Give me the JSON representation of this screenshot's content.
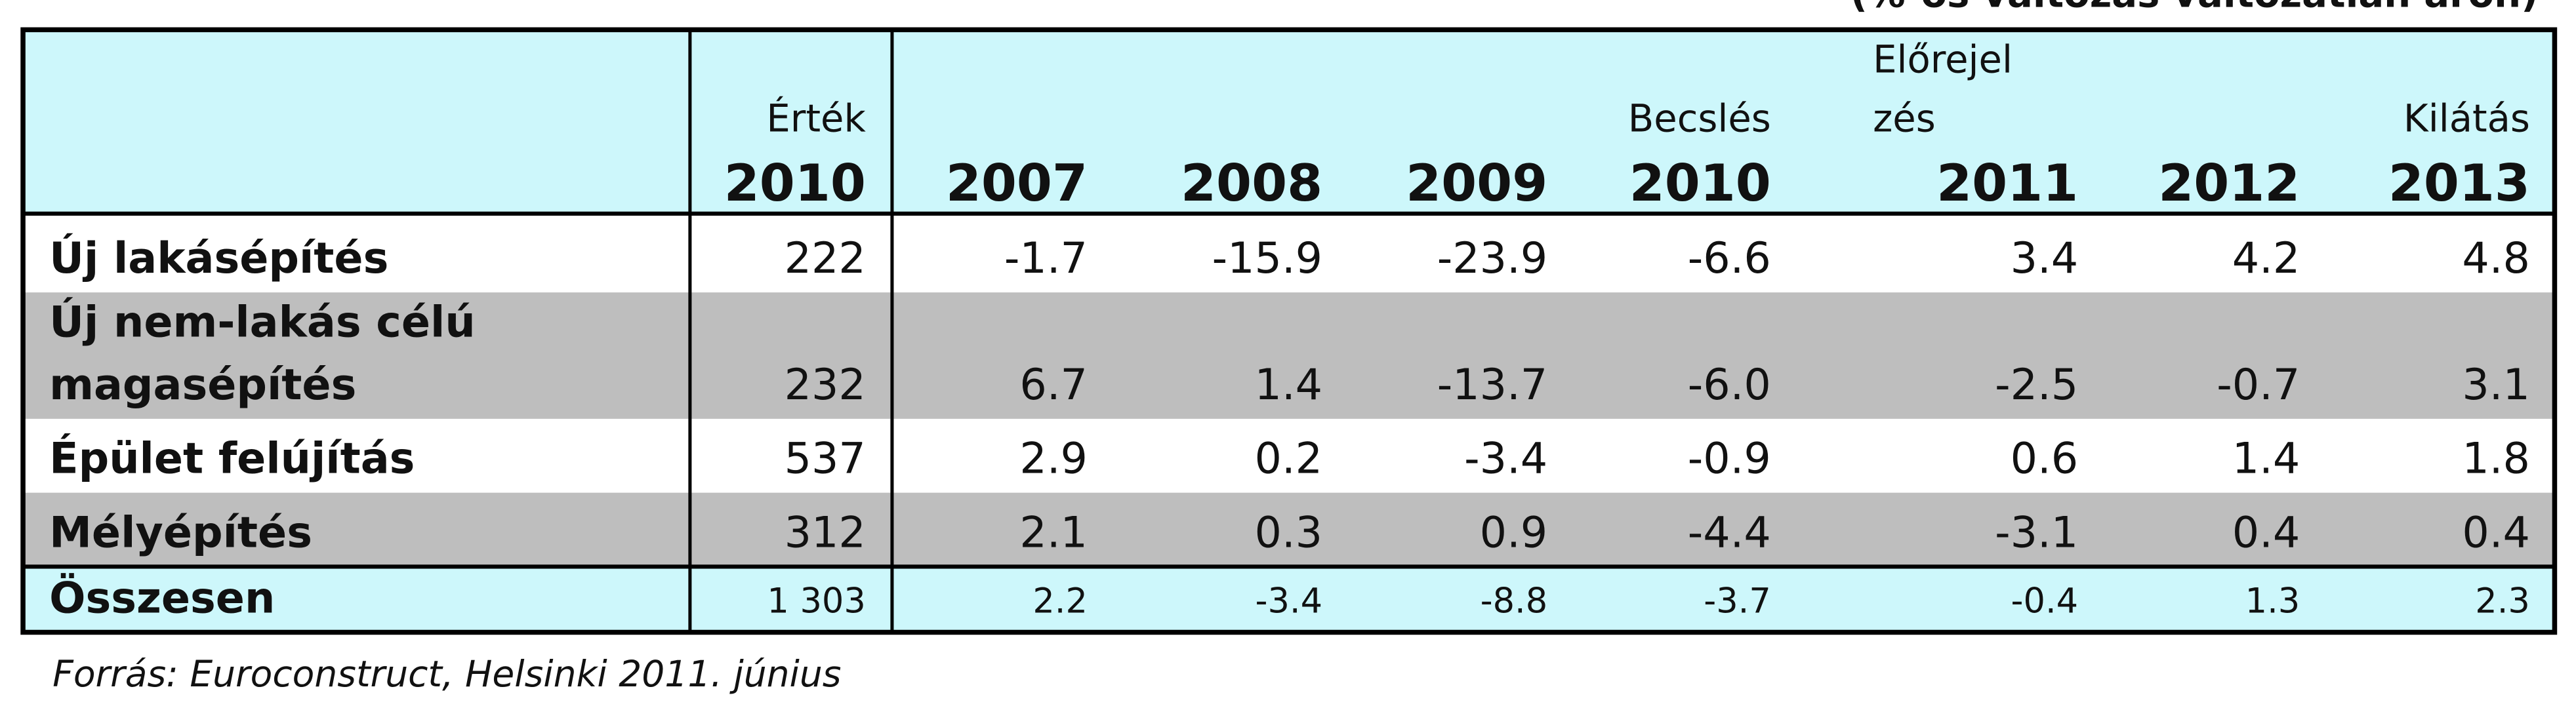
{
  "note": "(%-os változás változatlan áron)",
  "table": {
    "header": {
      "value_label": "Érték",
      "value_year": "2010",
      "columns": [
        {
          "year": "2007"
        },
        {
          "year": "2008"
        },
        {
          "year": "2009"
        },
        {
          "label": [
            "Becslés"
          ],
          "year": "2010"
        },
        {
          "label": [
            "Előrejel",
            "zés"
          ],
          "year": "2011"
        },
        {
          "year": "2012"
        },
        {
          "label": [
            "Kilátás"
          ],
          "year": "2013"
        }
      ]
    },
    "rows": [
      {
        "label": [
          "Új lakásépítés"
        ],
        "value": "222",
        "changes": [
          "-1.7",
          "-15.9",
          "-23.9",
          "-6.6",
          "3.4",
          "4.2",
          "4.8"
        ]
      },
      {
        "label": [
          "Új nem-lakás célú",
          "magasépítés"
        ],
        "value": "232",
        "changes": [
          "6.7",
          "1.4",
          "-13.7",
          "-6.0",
          "-2.5",
          "-0.7",
          "3.1"
        ]
      },
      {
        "label": [
          "Épület felújítás"
        ],
        "value": "537",
        "changes": [
          "2.9",
          "0.2",
          "-3.4",
          "-0.9",
          "0.6",
          "1.4",
          "1.8"
        ]
      },
      {
        "label": [
          "Mélyépítés"
        ],
        "value": "312",
        "changes": [
          "2.1",
          "0.3",
          "0.9",
          "-4.4",
          "-3.1",
          "0.4",
          "0.4"
        ]
      }
    ],
    "total": {
      "label": "Összesen",
      "value": "1 303",
      "changes": [
        "2.2",
        "-3.4",
        "-8.8",
        "-3.7",
        "-0.4",
        "1.3",
        "2.3"
      ]
    }
  },
  "source": "Forrás: Euroconstruct, Helsinki 2011. június"
}
